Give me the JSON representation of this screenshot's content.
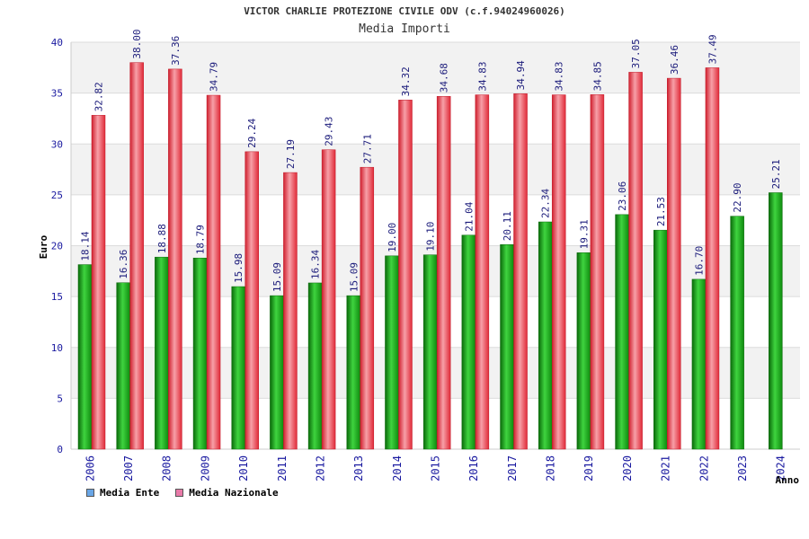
{
  "chart_data": {
    "type": "bar",
    "title": "VICTOR CHARLIE PROTEZIONE CIVILE ODV (c.f.94024960026)",
    "subtitle": "Media Importi",
    "ylabel": "Euro",
    "xlabel": "Anno",
    "ylim": [
      0,
      40
    ],
    "yticks": [
      0,
      5,
      10,
      15,
      20,
      25,
      30,
      35,
      40
    ],
    "grid": true,
    "legend_position": "bottom-left",
    "categories": [
      "2006",
      "2007",
      "2008",
      "2009",
      "2010",
      "2011",
      "2012",
      "2013",
      "2014",
      "2015",
      "2016",
      "2017",
      "2018",
      "2019",
      "2020",
      "2021",
      "2022",
      "2023",
      "2024"
    ],
    "series": [
      {
        "name": "Media Ente",
        "legend_color": "#6aa6e6",
        "bar_color": "#22b022",
        "values": [
          18.14,
          16.36,
          18.88,
          18.79,
          15.98,
          15.09,
          16.34,
          15.09,
          19.0,
          19.1,
          21.04,
          20.11,
          22.34,
          19.31,
          23.06,
          21.53,
          16.7,
          22.9,
          25.21
        ],
        "labels": [
          "18.14",
          "16.36",
          "18.88",
          "18.79",
          "15.98",
          "15.09",
          "16.34",
          "15.09",
          "19.00",
          "19.10",
          "21.04",
          "20.11",
          "22.34",
          "19.31",
          "23.06",
          "21.53",
          "16.70",
          "22.90",
          "25.21"
        ]
      },
      {
        "name": "Media Nazionale",
        "legend_color": "#e87aa8",
        "bar_color": "#e83848",
        "values": [
          32.82,
          38.0,
          37.36,
          34.79,
          29.24,
          27.19,
          29.43,
          27.71,
          34.32,
          34.68,
          34.83,
          34.94,
          34.83,
          34.85,
          37.05,
          36.46,
          37.49,
          null,
          null
        ],
        "labels": [
          "32.82",
          "38.00",
          "37.36",
          "34.79",
          "29.24",
          "27.19",
          "29.43",
          "27.71",
          "34.32",
          "34.68",
          "34.83",
          "34.94",
          "34.83",
          "34.85",
          "37.05",
          "36.46",
          "37.49",
          null,
          null
        ]
      }
    ]
  }
}
